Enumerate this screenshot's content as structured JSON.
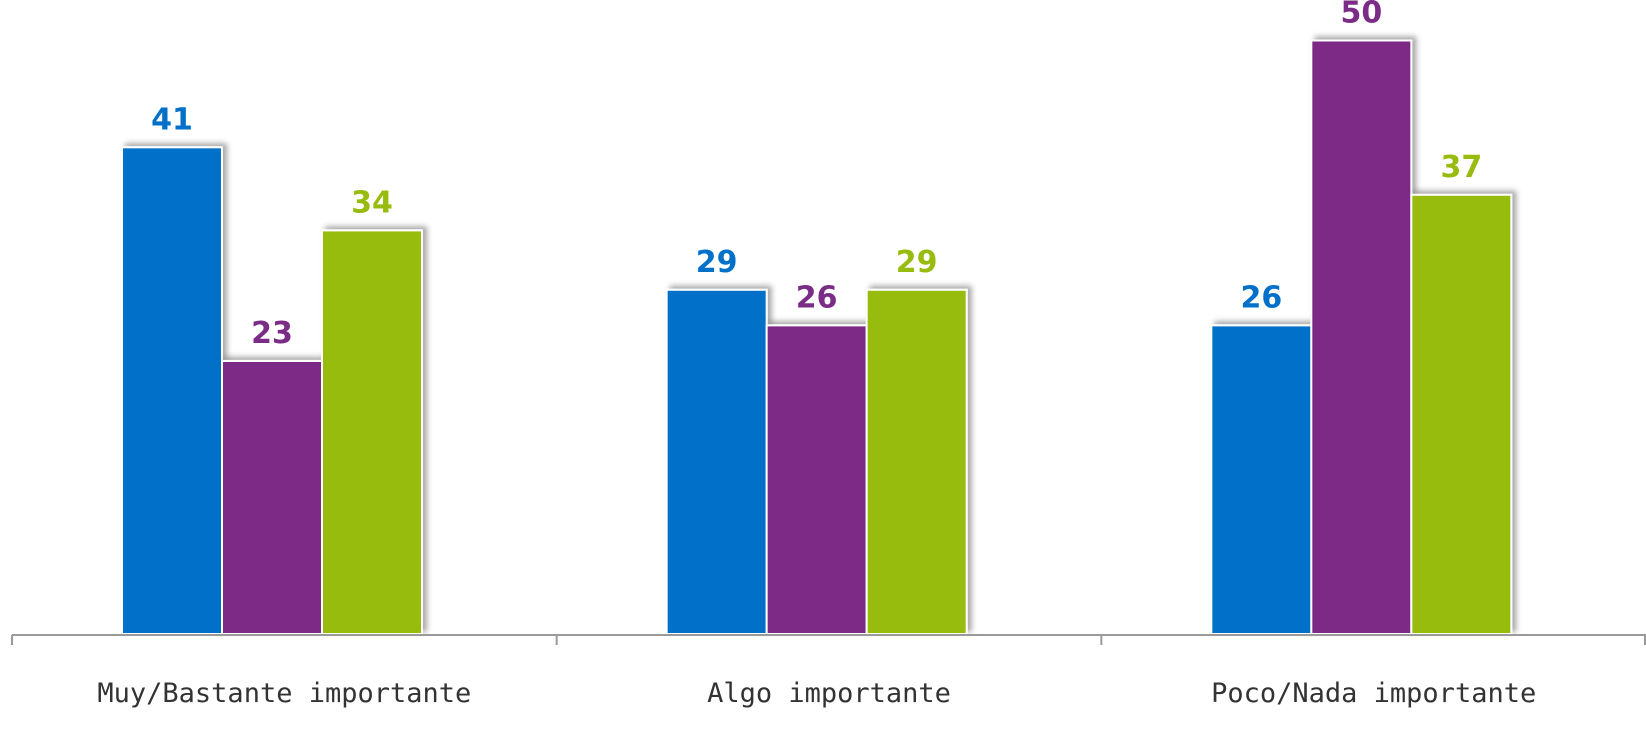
{
  "chart_data": {
    "type": "bar",
    "categories": [
      "Muy/Bastante importante",
      "Algo importante",
      "Poco/Nada importante"
    ],
    "series": [
      {
        "values": [
          41,
          29,
          26
        ],
        "color": "#0070C8"
      },
      {
        "values": [
          23,
          26,
          50
        ],
        "color": "#7B2C86"
      },
      {
        "values": [
          34,
          29,
          37
        ],
        "color": "#97BC0E"
      }
    ],
    "title": "",
    "xlabel": "",
    "ylabel": "",
    "ylim": [
      0,
      55
    ],
    "grid": false,
    "legend": "none"
  }
}
